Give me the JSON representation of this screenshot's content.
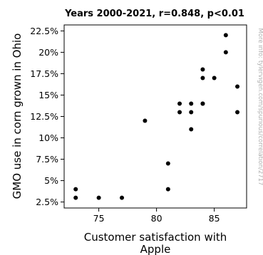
{
  "chart_data": {
    "type": "scatter",
    "title": "Years 2000-2021, r=0.848, p<0.01",
    "xlabel_line1": "Customer satisfaction with",
    "xlabel_line2": "Apple",
    "ylabel": "GMO use in corn grown in Ohio",
    "xlim": [
      72,
      87.8
    ],
    "ylim": [
      1.8,
      23.2
    ],
    "x_ticks": [
      75,
      80,
      85
    ],
    "x_tick_labels": [
      "75",
      "80",
      "85"
    ],
    "y_ticks": [
      2.5,
      5,
      7.5,
      10,
      12.5,
      15,
      17.5,
      20,
      22.5
    ],
    "y_tick_labels": [
      "2.5%",
      "5%",
      "7.5%",
      "10%",
      "12.5%",
      "15%",
      "17.5%",
      "20%",
      "22.5%"
    ],
    "point_color": "#000000",
    "points": [
      {
        "x": 73,
        "y": 3
      },
      {
        "x": 73,
        "y": 4
      },
      {
        "x": 75,
        "y": 3
      },
      {
        "x": 77,
        "y": 3
      },
      {
        "x": 79,
        "y": 12
      },
      {
        "x": 81,
        "y": 4
      },
      {
        "x": 81,
        "y": 7
      },
      {
        "x": 82,
        "y": 13
      },
      {
        "x": 82,
        "y": 14
      },
      {
        "x": 83,
        "y": 11
      },
      {
        "x": 83,
        "y": 13
      },
      {
        "x": 83,
        "y": 14
      },
      {
        "x": 84,
        "y": 14
      },
      {
        "x": 84,
        "y": 14
      },
      {
        "x": 84,
        "y": 17
      },
      {
        "x": 84,
        "y": 18
      },
      {
        "x": 85,
        "y": 17
      },
      {
        "x": 86,
        "y": 20
      },
      {
        "x": 86,
        "y": 22
      },
      {
        "x": 87,
        "y": 13
      },
      {
        "x": 87,
        "y": 16
      }
    ]
  },
  "watermark": "More info: tylervigen.com/spurious/correlation/2717"
}
